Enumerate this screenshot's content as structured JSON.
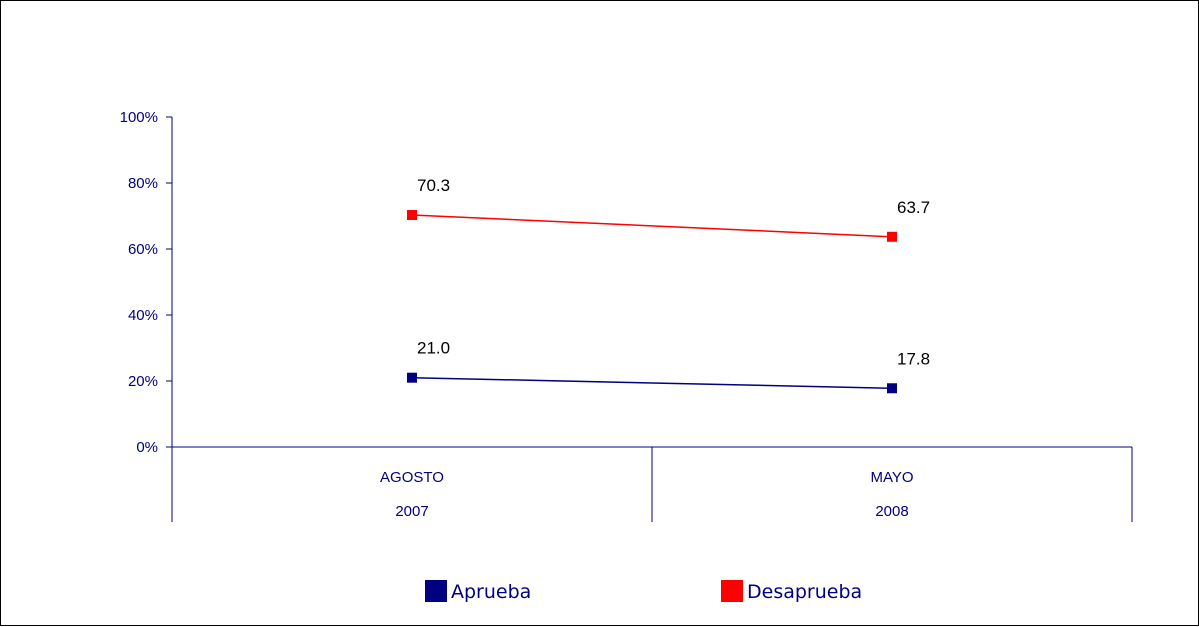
{
  "chart_data": {
    "type": "line",
    "categories": [
      {
        "line1": "AGOSTO",
        "line2": "2007"
      },
      {
        "line1": "MAYO",
        "line2": "2008"
      }
    ],
    "series": [
      {
        "name": "Aprueba",
        "values": [
          21.0,
          17.8
        ],
        "labels": [
          "21.0",
          "17.8"
        ],
        "color": "#000080"
      },
      {
        "name": "Desaprueba",
        "values": [
          70.3,
          63.7
        ],
        "labels": [
          "70.3",
          "63.7"
        ],
        "color": "#ff0000"
      }
    ],
    "ylim": [
      0,
      100
    ],
    "yticks": [
      0,
      20,
      40,
      60,
      80,
      100
    ],
    "ytick_labels": [
      "0%",
      "20%",
      "40%",
      "60%",
      "80%",
      "100%"
    ],
    "axis_color": "#000080",
    "grid": false,
    "legend_position": "bottom"
  }
}
